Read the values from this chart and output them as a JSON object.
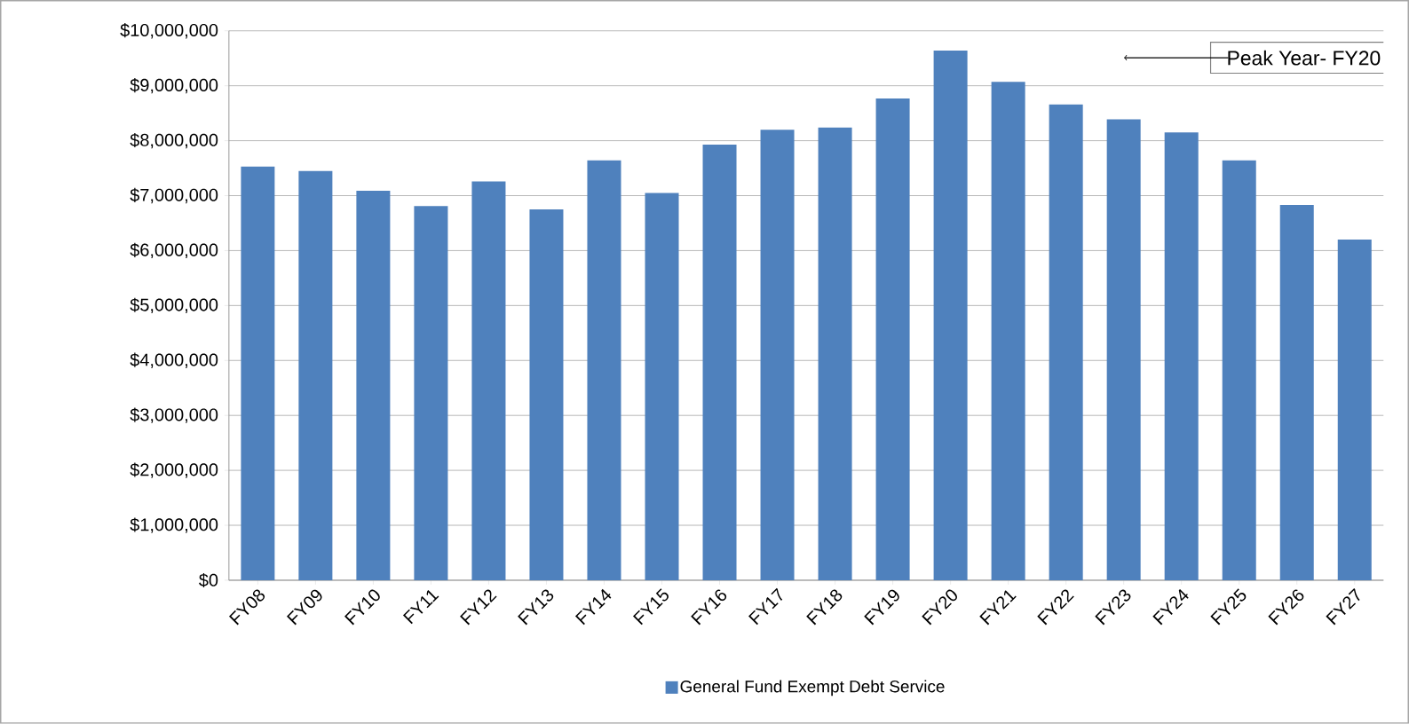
{
  "chart_data": {
    "type": "bar",
    "categories": [
      "FY08",
      "FY09",
      "FY10",
      "FY11",
      "FY12",
      "FY13",
      "FY14",
      "FY15",
      "FY16",
      "FY17",
      "FY18",
      "FY19",
      "FY20",
      "FY21",
      "FY22",
      "FY23",
      "FY24",
      "FY25",
      "FY26",
      "FY27"
    ],
    "series": [
      {
        "name": "General Fund Exempt Debt Service",
        "color": "#4f81bd",
        "values": [
          7530000,
          7450000,
          7090000,
          6810000,
          7260000,
          6750000,
          7640000,
          7050000,
          7930000,
          8200000,
          8240000,
          8770000,
          9640000,
          9070000,
          8660000,
          8390000,
          8150000,
          7640000,
          6830000,
          6200000
        ]
      }
    ],
    "ylim": [
      0,
      10000000
    ],
    "yticks": [
      {
        "value": 0,
        "label": "$0"
      },
      {
        "value": 1000000,
        "label": "$1,000,000"
      },
      {
        "value": 2000000,
        "label": "$2,000,000"
      },
      {
        "value": 3000000,
        "label": "$3,000,000"
      },
      {
        "value": 4000000,
        "label": "$4,000,000"
      },
      {
        "value": 5000000,
        "label": "$5,000,000"
      },
      {
        "value": 6000000,
        "label": "$6,000,000"
      },
      {
        "value": 7000000,
        "label": "$7,000,000"
      },
      {
        "value": 8000000,
        "label": "$8,000,000"
      },
      {
        "value": 9000000,
        "label": "$9,000,000"
      },
      {
        "value": 10000000,
        "label": "$10,000,000"
      }
    ],
    "grid": "y",
    "legend": "bottom",
    "annotations": [
      "Peak  Year- FY20"
    ]
  }
}
